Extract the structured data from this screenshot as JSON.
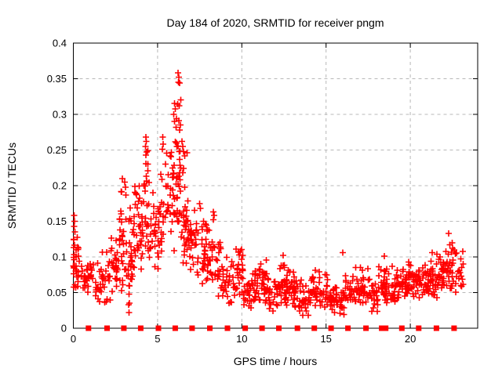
{
  "chart_data": {
    "type": "scatter",
    "title": "Day 184 of 2020, SRMTID for receiver pngm",
    "xlabel": "GPS time / hours",
    "ylabel": "SRMTID / TECUs",
    "xlim": [
      0,
      24
    ],
    "ylim": [
      0,
      0.4
    ],
    "xtick_values": [
      0,
      5,
      10,
      15,
      20
    ],
    "xtick_labels": [
      "0",
      "5",
      "10",
      "15",
      "20"
    ],
    "ytick_values": [
      0,
      0.05,
      0.1,
      0.15,
      0.2,
      0.25,
      0.3,
      0.35,
      0.4
    ],
    "ytick_labels": [
      "0",
      "0.05",
      "0.1",
      "0.15",
      "0.2",
      "0.25",
      "0.3",
      "0.35",
      "0.4"
    ],
    "grid": true,
    "legend": "none",
    "colors": {
      "marker": "#ff0000",
      "grid": "#b8b8b8",
      "axis": "#000000",
      "background": "#ffffff"
    },
    "series": [
      {
        "name": "srmtid-points",
        "marker": "plus",
        "seed": 1840,
        "feature_points": [
          [
            0.05,
            0.158
          ],
          [
            0.07,
            0.15
          ],
          [
            0.05,
            0.143
          ],
          [
            0.1,
            0.135
          ],
          [
            0.03,
            0.125
          ],
          [
            2.92,
            0.21
          ],
          [
            3.05,
            0.205
          ],
          [
            3.1,
            0.198
          ],
          [
            2.85,
            0.192
          ],
          [
            3.3,
            0.15
          ],
          [
            3.32,
            0.12
          ],
          [
            3.3,
            0.09
          ],
          [
            3.31,
            0.06
          ],
          [
            3.33,
            0.035
          ],
          [
            3.3,
            0.022
          ],
          [
            4.3,
            0.268
          ],
          [
            4.33,
            0.262
          ],
          [
            4.28,
            0.255
          ],
          [
            4.35,
            0.247
          ],
          [
            4.3,
            0.243
          ],
          [
            5.3,
            0.268
          ],
          [
            5.33,
            0.258
          ],
          [
            5.28,
            0.251
          ],
          [
            5.95,
            0.3
          ],
          [
            6.0,
            0.29
          ],
          [
            6.1,
            0.282
          ],
          [
            6.22,
            0.358
          ],
          [
            6.26,
            0.352
          ],
          [
            6.24,
            0.345
          ],
          [
            6.3,
            0.344
          ],
          [
            6.28,
            0.312
          ],
          [
            6.35,
            0.285
          ],
          [
            6.3,
            0.278
          ],
          [
            6.45,
            0.262
          ],
          [
            6.5,
            0.255
          ],
          [
            6.55,
            0.248
          ],
          [
            6.6,
            0.242
          ],
          [
            6.75,
            0.246
          ],
          [
            7.5,
            0.175
          ],
          [
            7.55,
            0.168
          ],
          [
            8.3,
            0.163
          ],
          [
            8.35,
            0.158
          ],
          [
            8.32,
            0.152
          ],
          [
            12.45,
            0.102
          ],
          [
            16.0,
            0.106
          ],
          [
            18.45,
            0.101
          ],
          [
            21.3,
            0.106
          ],
          [
            22.28,
            0.133
          ],
          [
            22.35,
            0.117
          ],
          [
            22.5,
            0.112
          ]
        ],
        "density_bands": [
          [
            0.0,
            0.3,
            30,
            0.04,
            0.16
          ],
          [
            0.3,
            0.7,
            10,
            0.05,
            0.1
          ],
          [
            0.7,
            1.2,
            22,
            0.05,
            0.11
          ],
          [
            1.2,
            1.7,
            18,
            0.035,
            0.1
          ],
          [
            1.7,
            2.2,
            22,
            0.03,
            0.12
          ],
          [
            2.2,
            2.7,
            26,
            0.05,
            0.14
          ],
          [
            2.7,
            3.2,
            30,
            0.05,
            0.2
          ],
          [
            3.2,
            3.6,
            26,
            0.02,
            0.19
          ],
          [
            3.6,
            4.1,
            36,
            0.08,
            0.22
          ],
          [
            4.1,
            4.5,
            26,
            0.1,
            0.25
          ],
          [
            4.5,
            5.0,
            22,
            0.07,
            0.2
          ],
          [
            5.0,
            5.5,
            26,
            0.08,
            0.24
          ],
          [
            5.5,
            6.0,
            30,
            0.1,
            0.29
          ],
          [
            6.0,
            6.4,
            38,
            0.12,
            0.34
          ],
          [
            6.4,
            6.8,
            30,
            0.08,
            0.25
          ],
          [
            6.8,
            7.3,
            26,
            0.08,
            0.19
          ],
          [
            7.3,
            7.8,
            22,
            0.06,
            0.16
          ],
          [
            7.8,
            8.4,
            30,
            0.06,
            0.16
          ],
          [
            8.4,
            9.0,
            26,
            0.04,
            0.13
          ],
          [
            9.0,
            9.6,
            22,
            0.03,
            0.11
          ],
          [
            9.6,
            10.1,
            26,
            0.04,
            0.12
          ],
          [
            10.1,
            10.6,
            22,
            0.02,
            0.08
          ],
          [
            10.6,
            11.1,
            26,
            0.03,
            0.09
          ],
          [
            11.1,
            11.6,
            26,
            0.03,
            0.1
          ],
          [
            11.6,
            12.1,
            22,
            0.02,
            0.08
          ],
          [
            12.1,
            12.6,
            26,
            0.03,
            0.1
          ],
          [
            12.6,
            13.1,
            26,
            0.03,
            0.09
          ],
          [
            13.1,
            13.6,
            22,
            0.02,
            0.08
          ],
          [
            13.6,
            14.1,
            22,
            0.015,
            0.07
          ],
          [
            14.1,
            14.6,
            22,
            0.03,
            0.09
          ],
          [
            14.6,
            15.1,
            22,
            0.02,
            0.08
          ],
          [
            15.1,
            15.6,
            22,
            0.02,
            0.07
          ],
          [
            15.6,
            16.1,
            22,
            0.015,
            0.06
          ],
          [
            16.1,
            16.6,
            22,
            0.03,
            0.08
          ],
          [
            16.6,
            17.1,
            22,
            0.03,
            0.09
          ],
          [
            17.1,
            17.6,
            22,
            0.03,
            0.09
          ],
          [
            17.6,
            18.1,
            22,
            0.02,
            0.08
          ],
          [
            18.1,
            18.6,
            26,
            0.03,
            0.1
          ],
          [
            18.6,
            19.1,
            22,
            0.03,
            0.09
          ],
          [
            19.1,
            19.6,
            22,
            0.04,
            0.09
          ],
          [
            19.6,
            20.1,
            26,
            0.04,
            0.1
          ],
          [
            20.1,
            20.6,
            26,
            0.04,
            0.1
          ],
          [
            20.6,
            21.1,
            26,
            0.04,
            0.1
          ],
          [
            21.1,
            21.6,
            26,
            0.04,
            0.11
          ],
          [
            21.6,
            22.1,
            26,
            0.05,
            0.11
          ],
          [
            22.1,
            22.7,
            30,
            0.04,
            0.13
          ],
          [
            22.7,
            23.2,
            16,
            0.05,
            0.11
          ]
        ]
      },
      {
        "name": "pass-boundary-squares",
        "marker": "square",
        "y": 0,
        "x": [
          0.9,
          2.0,
          3.0,
          4.0,
          5.05,
          6.05,
          7.05,
          8.1,
          9.15,
          10.2,
          11.2,
          12.2,
          13.3,
          14.3,
          15.3,
          16.3,
          17.37,
          18.3,
          18.54,
          19.5,
          20.5,
          21.55,
          22.6
        ]
      }
    ]
  }
}
